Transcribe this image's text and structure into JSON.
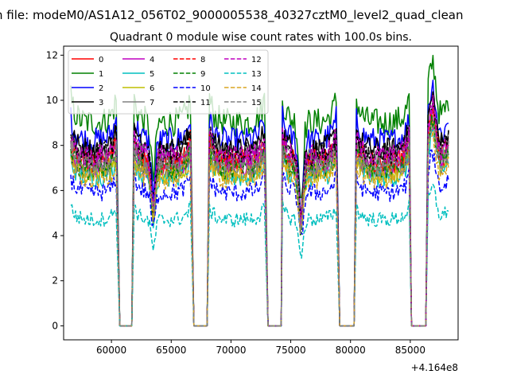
{
  "suptitle": "n file: modeM0/AS1A12_056T02_9000005538_40327cztM0_level2_quad_clean",
  "chart_data": {
    "type": "line",
    "title": "Quadrant 0 module wise count rates with 100.0s bins.",
    "xlabel": "",
    "ylabel": "",
    "x_offset_label": "+4.164e8",
    "xlim": [
      56000,
      89000
    ],
    "ylim": [
      -0.62,
      12.4
    ],
    "xticks": [
      60000,
      65000,
      70000,
      75000,
      80000,
      85000
    ],
    "xtick_labels": [
      "60000",
      "65000",
      "70000",
      "75000",
      "80000",
      "85000"
    ],
    "yticks": [
      0,
      2,
      4,
      6,
      8,
      10,
      12
    ],
    "ytick_labels": [
      "0",
      "2",
      "4",
      "6",
      "8",
      "10",
      "12"
    ],
    "grid": false,
    "legend_position": "top-left",
    "legend_columns": 4,
    "segments": [
      [
        56600,
        60400
      ],
      [
        61900,
        66600
      ],
      [
        68200,
        72800
      ],
      [
        74300,
        78800
      ],
      [
        80500,
        84900
      ],
      [
        86500,
        88200
      ]
    ],
    "gaps": [
      [
        60700,
        61700
      ],
      [
        66900,
        68000
      ],
      [
        73100,
        74200
      ],
      [
        79100,
        80300
      ],
      [
        85100,
        86300
      ]
    ],
    "series": [
      {
        "name": "0",
        "color": "#ff0000",
        "style": "solid",
        "mean": 7.2
      },
      {
        "name": "1",
        "color": "#008000",
        "style": "solid",
        "mean": 9.0
      },
      {
        "name": "2",
        "color": "#0000ff",
        "style": "solid",
        "mean": 8.2
      },
      {
        "name": "3",
        "color": "#000000",
        "style": "solid",
        "mean": 7.8
      },
      {
        "name": "4",
        "color": "#bf00bf",
        "style": "solid",
        "mean": 7.0
      },
      {
        "name": "5",
        "color": "#00bfbf",
        "style": "solid",
        "mean": 6.6
      },
      {
        "name": "6",
        "color": "#bfbf00",
        "style": "solid",
        "mean": 6.8
      },
      {
        "name": "7",
        "color": "#808080",
        "style": "solid",
        "mean": 7.4
      },
      {
        "name": "8",
        "color": "#ff0000",
        "style": "dashed",
        "mean": 7.3
      },
      {
        "name": "9",
        "color": "#008000",
        "style": "dashed",
        "mean": 6.9
      },
      {
        "name": "10",
        "color": "#0000ff",
        "style": "dashed",
        "mean": 5.9
      },
      {
        "name": "11",
        "color": "#000000",
        "style": "dashed",
        "mean": 7.6
      },
      {
        "name": "12",
        "color": "#bf00bf",
        "style": "dashed",
        "mean": 7.5
      },
      {
        "name": "13",
        "color": "#00bfbf",
        "style": "dashed",
        "mean": 4.7
      },
      {
        "name": "14",
        "color": "#daa520",
        "style": "dashed",
        "mean": 6.5
      },
      {
        "name": "15",
        "color": "#808080",
        "style": "dashed",
        "mean": 7.0
      }
    ]
  }
}
